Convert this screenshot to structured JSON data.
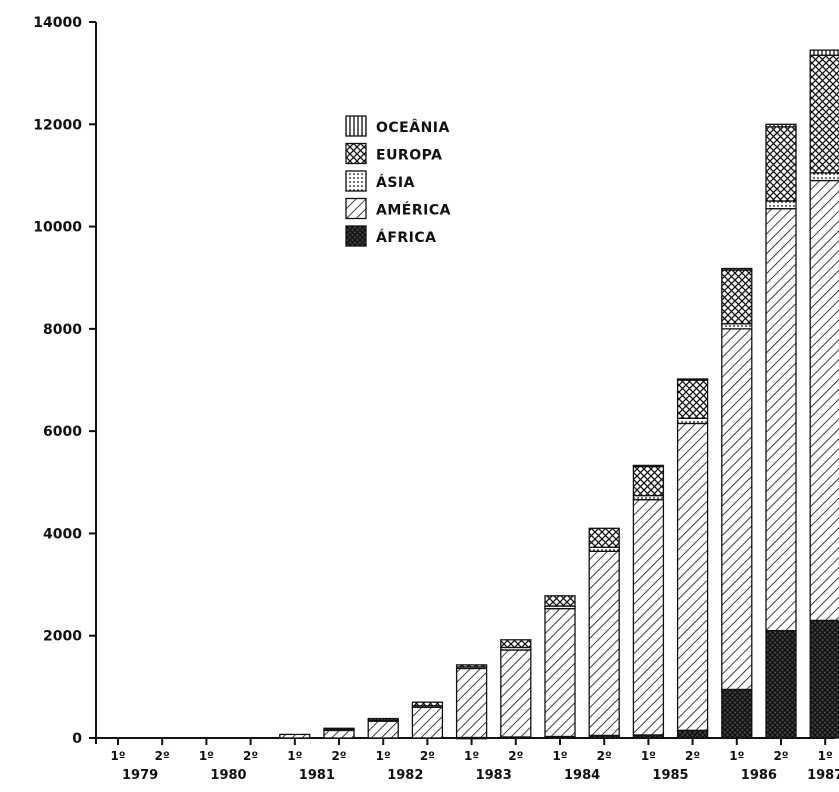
{
  "chart_data": {
    "type": "bar",
    "stacked": true,
    "title": "",
    "xlabel": "",
    "ylabel": "",
    "ylim": [
      0,
      14000
    ],
    "yticks": [
      0,
      2000,
      4000,
      6000,
      8000,
      10000,
      12000,
      14000
    ],
    "ytick_labels": [
      "0",
      "2000",
      "4000",
      "6000",
      "8000",
      "10000",
      "12000",
      "14000"
    ],
    "grid": false,
    "legend_position": "top-center",
    "categories": [
      "1º",
      "2º",
      "1º",
      "2º",
      "1º",
      "2º",
      "1º",
      "2º",
      "1º",
      "2º",
      "1º",
      "2º",
      "1º",
      "2º",
      "1º",
      "2º",
      "1º"
    ],
    "years": [
      {
        "label": "1979",
        "span": [
          0,
          1
        ]
      },
      {
        "label": "1980",
        "span": [
          2,
          3
        ]
      },
      {
        "label": "1981",
        "span": [
          4,
          5
        ]
      },
      {
        "label": "1982",
        "span": [
          6,
          7
        ]
      },
      {
        "label": "1983",
        "span": [
          8,
          9
        ]
      },
      {
        "label": "1984",
        "span": [
          10,
          11
        ]
      },
      {
        "label": "1985",
        "span": [
          12,
          13
        ]
      },
      {
        "label": "1986",
        "span": [
          14,
          15
        ]
      },
      {
        "label": "1987",
        "span": [
          16,
          16
        ]
      }
    ],
    "series": [
      {
        "name": "ÁFRICA",
        "pattern": "crosshatch-dense",
        "values": [
          0,
          0,
          0,
          0,
          0,
          0,
          0,
          0,
          10,
          20,
          30,
          50,
          60,
          150,
          950,
          2100,
          2300
        ]
      },
      {
        "name": "AMÉRICA",
        "pattern": "diagonal",
        "values": [
          0,
          0,
          0,
          0,
          70,
          160,
          340,
          600,
          1350,
          1700,
          2500,
          3600,
          4600,
          6000,
          7050,
          8250,
          8600
        ]
      },
      {
        "name": "ÁSIA",
        "pattern": "dotted",
        "values": [
          0,
          0,
          0,
          0,
          0,
          10,
          10,
          30,
          30,
          50,
          50,
          80,
          80,
          100,
          100,
          150,
          150
        ]
      },
      {
        "name": "EUROPA",
        "pattern": "crosshatch",
        "values": [
          0,
          0,
          0,
          0,
          0,
          20,
          30,
          70,
          40,
          150,
          200,
          370,
          580,
          750,
          1050,
          1450,
          2300
        ]
      },
      {
        "name": "OCEÂNIA",
        "pattern": "vertical",
        "values": [
          0,
          0,
          0,
          0,
          0,
          0,
          0,
          0,
          0,
          0,
          0,
          0,
          10,
          20,
          30,
          50,
          100
        ]
      }
    ]
  }
}
